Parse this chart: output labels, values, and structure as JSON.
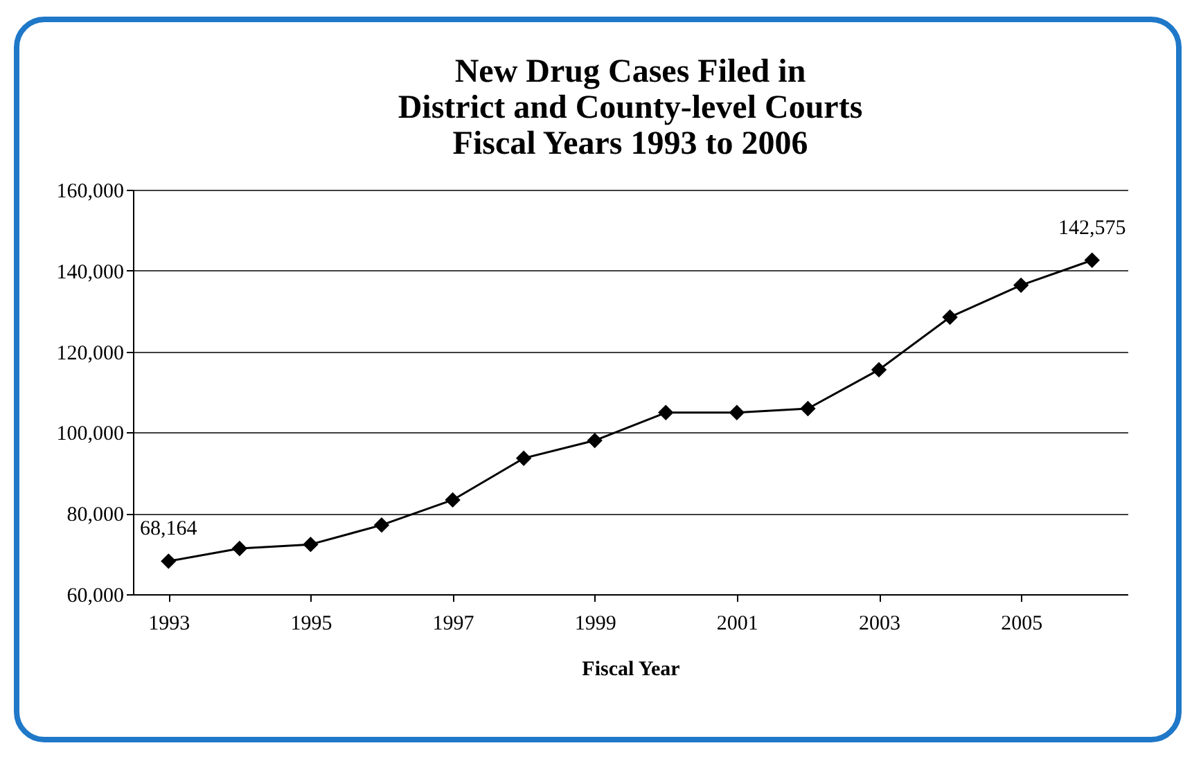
{
  "chart_data": {
    "type": "line",
    "title": "New Drug Cases Filed in\nDistrict and County-level Courts\nFiscal Years 1993 to 2006",
    "xlabel": "Fiscal Year",
    "x": [
      1993,
      1994,
      1995,
      1996,
      1997,
      1998,
      1999,
      2000,
      2001,
      2002,
      2003,
      2004,
      2005,
      2006
    ],
    "series": [
      {
        "color": "#000000",
        "values": [
          68164,
          71300,
          72300,
          77100,
          83300,
          93600,
          98000,
          104900,
          104900,
          105900,
          115500,
          128500,
          136400,
          142575
        ],
        "value_labels": [
          "68,164",
          null,
          null,
          null,
          null,
          null,
          null,
          null,
          null,
          null,
          null,
          null,
          null,
          "142,575"
        ]
      }
    ],
    "xlim": [
      1992.5,
      2006.5
    ],
    "xticks": [
      1993,
      1995,
      1997,
      1999,
      2001,
      2003,
      2005
    ],
    "ylim": [
      60000,
      160000
    ],
    "yticks": [
      {
        "value": 60000,
        "label": "60,000"
      },
      {
        "value": 80000,
        "label": "80,000"
      },
      {
        "value": 100000,
        "label": "100,000"
      },
      {
        "value": 120000,
        "label": "120,000"
      },
      {
        "value": 140000,
        "label": "140,000"
      },
      {
        "value": 160000,
        "label": "160,000"
      }
    ],
    "grid": "y",
    "marker": "diamond",
    "line_style": "solid"
  }
}
